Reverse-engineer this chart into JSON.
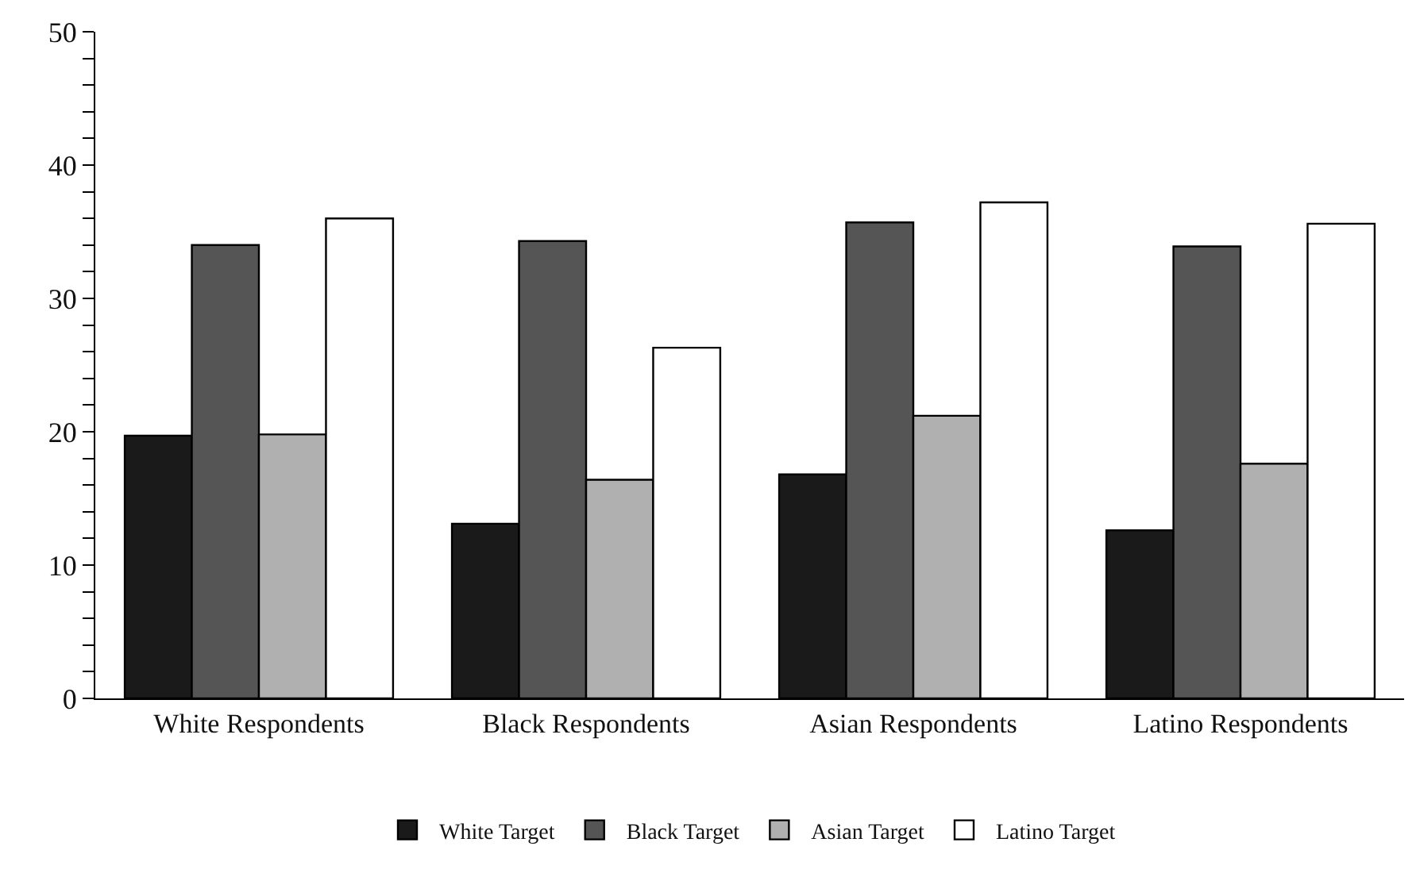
{
  "chart_data": {
    "type": "bar",
    "categories": [
      "White Respondents",
      "Black Respondents",
      "Asian Respondents",
      "Latino Respondents"
    ],
    "series": [
      {
        "name": "White Target",
        "color": "#1a1a1a",
        "values": [
          19.7,
          13.1,
          16.8,
          12.6
        ]
      },
      {
        "name": "Black Target",
        "color": "#555555",
        "values": [
          34.0,
          34.3,
          35.7,
          33.9
        ]
      },
      {
        "name": "Asian Target",
        "color": "#b0b0b0",
        "values": [
          19.8,
          16.4,
          21.2,
          17.6
        ]
      },
      {
        "name": "Latino Target",
        "color": "#ffffff",
        "values": [
          36.0,
          26.3,
          37.2,
          35.6
        ]
      }
    ],
    "ylim": [
      0,
      50
    ],
    "yticks": [
      0,
      {
        "value": 2,
        "label": null
      },
      {
        "value": 4,
        "label": null
      },
      {
        "value": 6,
        "label": null
      },
      {
        "value": 8,
        "label": null
      },
      10,
      {
        "value": 12,
        "label": null
      },
      {
        "value": 14,
        "label": null
      },
      {
        "value": 16,
        "label": null
      },
      {
        "value": 18,
        "label": null
      },
      20,
      {
        "value": 22,
        "label": null
      },
      {
        "value": 24,
        "label": null
      },
      {
        "value": 26,
        "label": null
      },
      {
        "value": 28,
        "label": null
      },
      30,
      {
        "value": 32,
        "label": null
      },
      {
        "value": 34,
        "label": null
      },
      {
        "value": 36,
        "label": null
      },
      {
        "value": 38,
        "label": null
      },
      40,
      {
        "value": 42,
        "label": null
      },
      {
        "value": 44,
        "label": null
      },
      {
        "value": 46,
        "label": null
      },
      {
        "value": 48,
        "label": null
      },
      50
    ],
    "grid": false,
    "legend": "bottom"
  }
}
